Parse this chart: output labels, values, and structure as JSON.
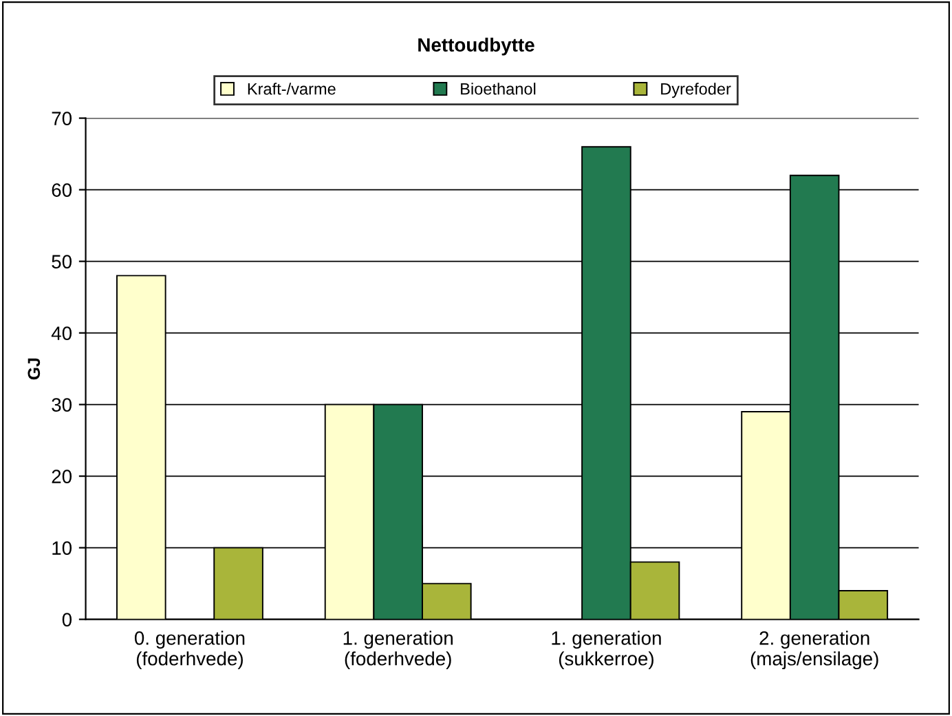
{
  "chart_data": {
    "type": "bar",
    "title": "Nettoudbytte",
    "ylabel": "GJ",
    "categories": [
      "0. generation\n(foderhvede)",
      "1. generation\n(foderhvede)",
      "1. generation\n(sukkerroe)",
      "2. generation\n(majs/ensilage)"
    ],
    "series": [
      {
        "name": "Kraft-/varme",
        "color": "#ffffcc",
        "values": [
          48,
          30,
          null,
          29
        ]
      },
      {
        "name": "Bioethanol",
        "color": "#227a50",
        "values": [
          null,
          30,
          66,
          62
        ]
      },
      {
        "name": "Dyrefoder",
        "color": "#a9b53a",
        "values": [
          10,
          5,
          8,
          4
        ]
      }
    ],
    "ylim": [
      0,
      70
    ],
    "yticks": [
      0,
      10,
      20,
      30,
      40,
      50,
      60,
      70
    ],
    "grid": "y",
    "legend": "top"
  }
}
